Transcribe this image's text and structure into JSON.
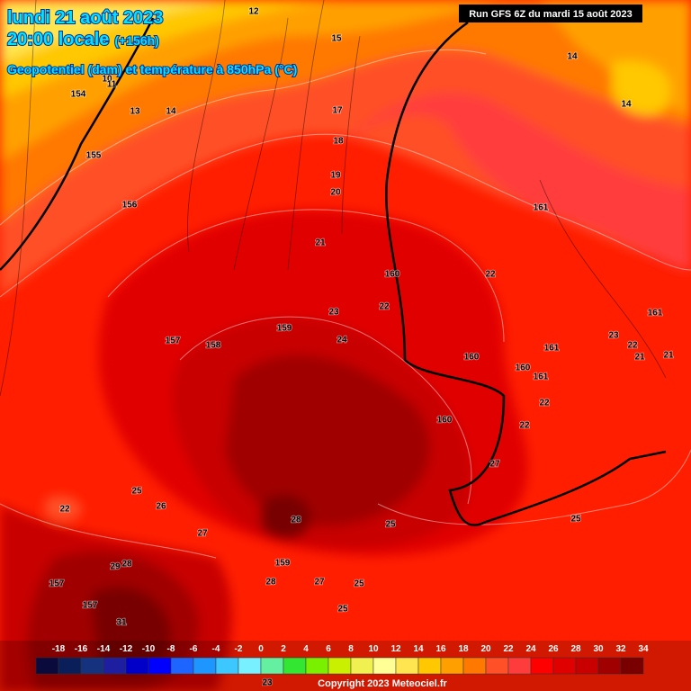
{
  "header": {
    "date": "lundi 21 août 2023",
    "time": "20:00 locale",
    "lead": "(+156h)",
    "subtitle": "Geopotentiel (dam) et température à 850hPa (°C)"
  },
  "run": "Run GFS 6Z du mardi 15 août 2023",
  "copyright": "Copyright 2023 Meteociel.fr",
  "colorbar": {
    "labels": [
      -18,
      -16,
      -14,
      -12,
      -10,
      -8,
      -6,
      -4,
      -2,
      0,
      2,
      4,
      6,
      8,
      10,
      12,
      14,
      16,
      18,
      20,
      22,
      24,
      26,
      28,
      30,
      32,
      34
    ],
    "colors": [
      "#0a0a3c",
      "#0a1e5a",
      "#14327d",
      "#1e1ea0",
      "#0000c8",
      "#0000ff",
      "#1e64ff",
      "#1e96ff",
      "#3cc8ff",
      "#78f0ff",
      "#64f0a0",
      "#32e632",
      "#78f000",
      "#c8f000",
      "#f0f050",
      "#ffff96",
      "#ffe650",
      "#ffc800",
      "#ffa000",
      "#ff7800",
      "#ff5028",
      "#ff3c3c",
      "#ff0000",
      "#e10000",
      "#c80000",
      "#a00000",
      "#780000"
    ]
  },
  "contour_labels": [
    "12",
    "15",
    "14",
    "14",
    "10",
    "11",
    "154",
    "13",
    "14",
    "17",
    "18",
    "155",
    "19",
    "20",
    "156",
    "161",
    "21",
    "160",
    "22",
    "22",
    "23",
    "161",
    "157",
    "158",
    "159",
    "24",
    "23",
    "22",
    "161",
    "21",
    "21",
    "160",
    "160",
    "161",
    "22",
    "160",
    "22",
    "27",
    "25",
    "26",
    "22",
    "28",
    "27",
    "25",
    "25",
    "29",
    "28",
    "159",
    "157",
    "28",
    "27",
    "25",
    "157",
    "25",
    "31",
    "23"
  ]
}
